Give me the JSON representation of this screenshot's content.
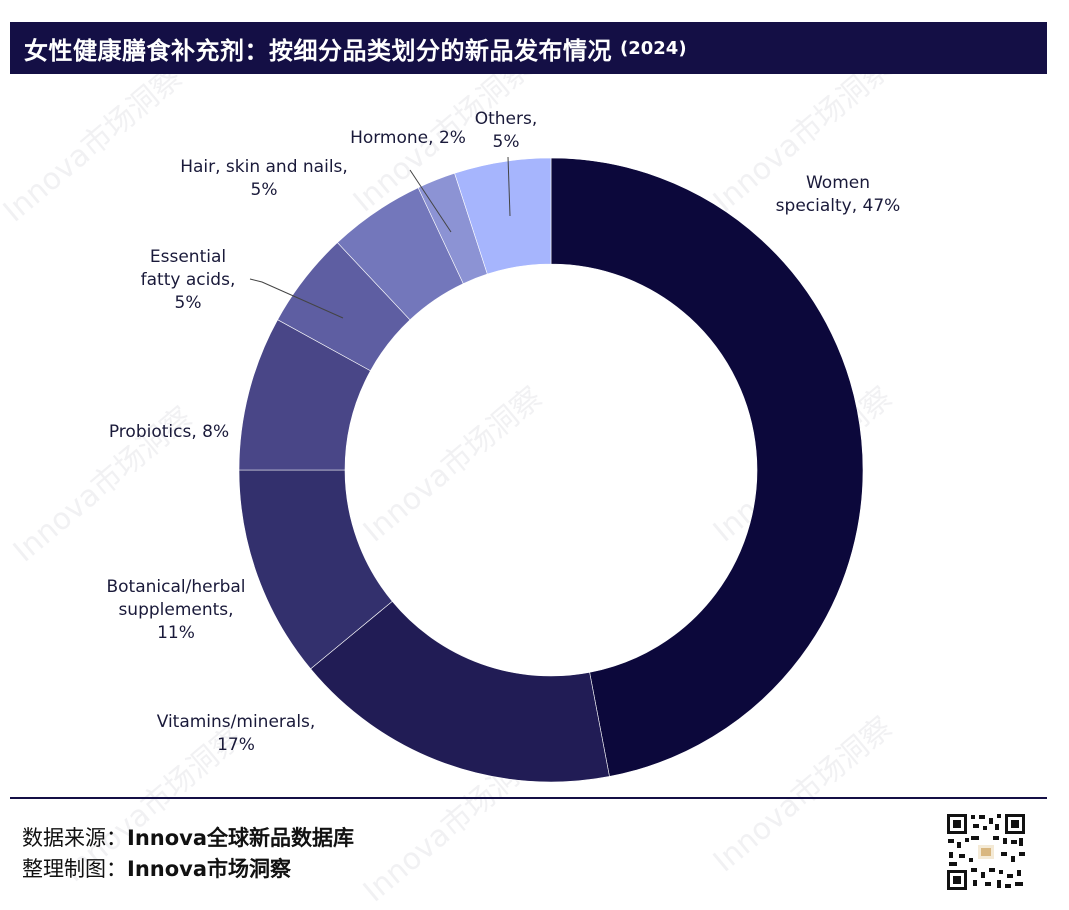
{
  "title": {
    "main": "女性健康膳食补充剂：按细分品类划分的新品发布情况",
    "year": "(2024)"
  },
  "chart_data": {
    "type": "pie",
    "variant": "donut",
    "start": "12 o'clock",
    "direction": "clockwise",
    "segments": [
      {
        "label_lines": [
          "Women",
          "specialty, 47%"
        ],
        "category": "Women specialty",
        "value": 47,
        "color": "#0c083b"
      },
      {
        "label_lines": [
          "Vitamins/minerals,",
          "17%"
        ],
        "category": "Vitamins/minerals",
        "value": 17,
        "color": "#211c55"
      },
      {
        "label_lines": [
          "Botanical/herbal",
          "supplements,",
          "11%"
        ],
        "category": "Botanical/herbal supplements",
        "value": 11,
        "color": "#33306d"
      },
      {
        "label_lines": [
          "Probiotics, 8%"
        ],
        "category": "Probiotics",
        "value": 8,
        "color": "#494687"
      },
      {
        "label_lines": [
          "Essential",
          "fatty acids,",
          "5%"
        ],
        "category": "Essential fatty acids",
        "value": 5,
        "color": "#5e5ea2"
      },
      {
        "label_lines": [
          "Hair, skin and nails,",
          "5%"
        ],
        "category": "Hair, skin and nails",
        "value": 5,
        "color": "#7377bb"
      },
      {
        "label_lines": [
          "Hormone, 2%"
        ],
        "category": "Hormone",
        "value": 2,
        "color": "#8c93d4"
      },
      {
        "label_lines": [
          "Others,",
          "5%"
        ],
        "category": "Others",
        "value": 5,
        "color": "#a6b5fd"
      }
    ]
  },
  "footer": {
    "source_key": "数据来源：",
    "source_value": "Innova全球新品数据库",
    "chart_key": "整理制图：",
    "chart_value": "Innova市场洞察"
  },
  "watermark": "Innova市场洞察",
  "colors": {
    "title_bg": "#140f45",
    "rule": "#140f45"
  }
}
